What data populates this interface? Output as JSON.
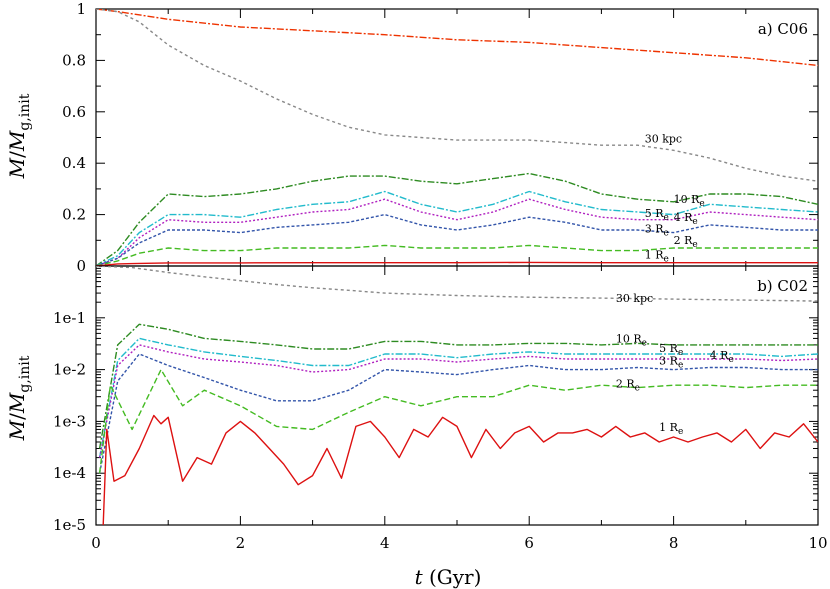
{
  "chart_data": [
    {
      "type": "line",
      "panel_label": "a) C06",
      "x_scale": "linear",
      "y_scale": "linear",
      "xlim": [
        0,
        10
      ],
      "ylim": [
        0,
        1
      ],
      "xticks": [
        0,
        2,
        4,
        6,
        8,
        10
      ],
      "yticks": [
        0,
        0.2,
        0.4,
        0.6,
        0.8,
        1
      ],
      "ytick_labels": [
        "0",
        "0.2",
        "0.4",
        "0.6",
        "0.8",
        "1"
      ],
      "series": [
        {
          "name": "orange",
          "color": "#ee3300",
          "dash": "7,2,2,2",
          "x": [
            0,
            0.3,
            1,
            2,
            3,
            4,
            5,
            6,
            7,
            8,
            9,
            10
          ],
          "y": [
            1,
            0.99,
            0.96,
            0.93,
            0.915,
            0.9,
            0.88,
            0.87,
            0.85,
            0.83,
            0.81,
            0.78
          ]
        },
        {
          "name": "30 kpc",
          "color": "#888888",
          "dash": "3,3",
          "x": [
            0,
            0.3,
            0.6,
            1,
            1.5,
            2,
            2.5,
            3,
            3.5,
            4,
            4.5,
            5,
            5.5,
            6,
            6.5,
            7,
            7.5,
            8,
            8.5,
            9,
            9.5,
            10
          ],
          "y": [
            1,
            0.99,
            0.95,
            0.86,
            0.78,
            0.72,
            0.65,
            0.59,
            0.54,
            0.51,
            0.5,
            0.49,
            0.49,
            0.49,
            0.48,
            0.47,
            0.47,
            0.45,
            0.42,
            0.38,
            0.35,
            0.33
          ]
        },
        {
          "name": "10 Re",
          "color": "#2e8b22",
          "dash": "7,2,2,2",
          "x": [
            0,
            0.3,
            0.6,
            1,
            1.5,
            2,
            2.5,
            3,
            3.5,
            4,
            4.5,
            5,
            5.5,
            6,
            6.5,
            7,
            7.5,
            8,
            8.5,
            9,
            9.5,
            10
          ],
          "y": [
            0,
            0.06,
            0.17,
            0.28,
            0.27,
            0.28,
            0.3,
            0.33,
            0.35,
            0.35,
            0.33,
            0.32,
            0.34,
            0.36,
            0.33,
            0.28,
            0.26,
            0.25,
            0.28,
            0.28,
            0.27,
            0.24
          ]
        },
        {
          "name": "5 Re",
          "color": "#22bbcc",
          "dash": "7,2,2,2",
          "x": [
            0,
            0.3,
            0.6,
            1,
            1.5,
            2,
            2.5,
            3,
            3.5,
            4,
            4.5,
            5,
            5.5,
            6,
            6.5,
            7,
            7.5,
            8,
            8.5,
            9,
            9.5,
            10
          ],
          "y": [
            0,
            0.04,
            0.13,
            0.2,
            0.2,
            0.19,
            0.22,
            0.24,
            0.25,
            0.29,
            0.24,
            0.21,
            0.24,
            0.29,
            0.25,
            0.22,
            0.21,
            0.2,
            0.24,
            0.23,
            0.22,
            0.21
          ]
        },
        {
          "name": "4 Re",
          "color": "#b020c0",
          "dash": "2,2",
          "x": [
            0,
            0.3,
            0.6,
            1,
            1.5,
            2,
            2.5,
            3,
            3.5,
            4,
            4.5,
            5,
            5.5,
            6,
            6.5,
            7,
            7.5,
            8,
            8.5,
            9,
            9.5,
            10
          ],
          "y": [
            0,
            0.03,
            0.11,
            0.18,
            0.17,
            0.17,
            0.19,
            0.21,
            0.22,
            0.26,
            0.21,
            0.18,
            0.21,
            0.26,
            0.22,
            0.19,
            0.18,
            0.18,
            0.21,
            0.2,
            0.19,
            0.18
          ]
        },
        {
          "name": "3 Re",
          "color": "#3355aa",
          "dash": "3,2",
          "x": [
            0,
            0.3,
            0.6,
            1,
            1.5,
            2,
            2.5,
            3,
            3.5,
            4,
            4.5,
            5,
            5.5,
            6,
            6.5,
            7,
            7.5,
            8,
            8.5,
            9,
            9.5,
            10
          ],
          "y": [
            0,
            0.03,
            0.09,
            0.14,
            0.14,
            0.13,
            0.15,
            0.16,
            0.17,
            0.2,
            0.16,
            0.14,
            0.16,
            0.19,
            0.17,
            0.14,
            0.14,
            0.13,
            0.16,
            0.15,
            0.14,
            0.14
          ]
        },
        {
          "name": "2 Re",
          "color": "#44bb22",
          "dash": "6,3",
          "x": [
            0,
            0.3,
            0.6,
            1,
            1.5,
            2,
            2.5,
            3,
            3.5,
            4,
            4.5,
            5,
            5.5,
            6,
            6.5,
            7,
            7.5,
            8,
            8.5,
            9,
            9.5,
            10
          ],
          "y": [
            0,
            0.02,
            0.05,
            0.07,
            0.06,
            0.06,
            0.07,
            0.07,
            0.07,
            0.08,
            0.07,
            0.07,
            0.07,
            0.08,
            0.07,
            0.06,
            0.06,
            0.07,
            0.07,
            0.07,
            0.07,
            0.07
          ]
        },
        {
          "name": "1 Re",
          "color": "#dd1111",
          "dash": "",
          "x": [
            0,
            0.3,
            0.6,
            1,
            2,
            3,
            4,
            5,
            6,
            7,
            8,
            9,
            10
          ],
          "y": [
            0,
            0.008,
            0.01,
            0.012,
            0.012,
            0.013,
            0.013,
            0.013,
            0.014,
            0.013,
            0.013,
            0.013,
            0.013
          ]
        }
      ],
      "labels": [
        {
          "text": "30 kpc",
          "x": 7.6,
          "y": 0.48
        },
        {
          "text": "10 R",
          "sub": "e",
          "x": 8.0,
          "y": 0.245
        },
        {
          "text": "5 R",
          "sub": "e",
          "x": 7.6,
          "y": 0.19
        },
        {
          "text": "4 R",
          "sub": "e",
          "x": 8.0,
          "y": 0.175
        },
        {
          "text": "3 R",
          "sub": "e",
          "x": 7.6,
          "y": 0.13
        },
        {
          "text": "2 R",
          "sub": "e",
          "x": 8.0,
          "y": 0.085
        },
        {
          "text": "1 R",
          "sub": "e",
          "x": 7.6,
          "y": 0.03
        }
      ]
    },
    {
      "type": "line",
      "panel_label": "b) C02",
      "x_scale": "linear",
      "y_scale": "log",
      "xlim": [
        0,
        10
      ],
      "ylim": [
        1e-05,
        1
      ],
      "xticks": [
        0,
        2,
        4,
        6,
        8,
        10
      ],
      "yticks": [
        1e-05,
        0.0001,
        0.001,
        0.01,
        0.1
      ],
      "ytick_labels": [
        "1e-5",
        "1e-4",
        "1e-3",
        "1e-2",
        "1e-1"
      ],
      "series": [
        {
          "name": "30 kpc",
          "color": "#888888",
          "dash": "3,3",
          "x": [
            0,
            0.5,
            1,
            1.5,
            2,
            2.5,
            3,
            3.5,
            4,
            5,
            6,
            7,
            8,
            9,
            10
          ],
          "y": [
            1,
            0.93,
            0.75,
            0.62,
            0.52,
            0.44,
            0.38,
            0.34,
            0.3,
            0.27,
            0.25,
            0.24,
            0.23,
            0.22,
            0.21
          ]
        },
        {
          "name": "10 Re",
          "color": "#2e8b22",
          "dash": "7,2,2,2",
          "x": [
            0.05,
            0.3,
            0.6,
            1,
            1.5,
            2,
            2.5,
            3,
            3.5,
            4,
            4.5,
            5,
            5.5,
            6,
            6.5,
            7,
            7.5,
            8,
            8.5,
            9,
            9.5,
            10
          ],
          "y": [
            0.0003,
            0.03,
            0.075,
            0.06,
            0.04,
            0.035,
            0.03,
            0.025,
            0.025,
            0.035,
            0.035,
            0.03,
            0.03,
            0.032,
            0.032,
            0.03,
            0.032,
            0.03,
            0.03,
            0.03,
            0.03,
            0.03
          ]
        },
        {
          "name": "5 Re",
          "color": "#22bbcc",
          "dash": "7,2,2,2",
          "x": [
            0.05,
            0.3,
            0.6,
            1,
            1.5,
            2,
            2.5,
            3,
            3.5,
            4,
            4.5,
            5,
            5.5,
            6,
            6.5,
            7,
            7.5,
            8,
            8.5,
            9,
            9.5,
            10
          ],
          "y": [
            0.0002,
            0.015,
            0.04,
            0.03,
            0.022,
            0.018,
            0.015,
            0.012,
            0.012,
            0.02,
            0.02,
            0.017,
            0.02,
            0.022,
            0.02,
            0.02,
            0.02,
            0.02,
            0.02,
            0.02,
            0.018,
            0.02
          ]
        },
        {
          "name": "4 Re",
          "color": "#b020c0",
          "dash": "2,2",
          "x": [
            0.05,
            0.3,
            0.6,
            1,
            1.5,
            2,
            2.5,
            3,
            3.5,
            4,
            4.5,
            5,
            5.5,
            6,
            6.5,
            7,
            7.5,
            8,
            8.5,
            9,
            9.5,
            10
          ],
          "y": [
            0.0002,
            0.012,
            0.03,
            0.022,
            0.016,
            0.014,
            0.012,
            0.009,
            0.01,
            0.016,
            0.016,
            0.014,
            0.016,
            0.018,
            0.016,
            0.016,
            0.016,
            0.016,
            0.016,
            0.016,
            0.015,
            0.016
          ]
        },
        {
          "name": "3 Re",
          "color": "#3355aa",
          "dash": "3,2",
          "x": [
            0.05,
            0.3,
            0.6,
            1,
            1.5,
            2,
            2.5,
            3,
            3.5,
            4,
            4.5,
            5,
            5.5,
            6,
            6.5,
            7,
            7.5,
            8,
            8.5,
            9,
            9.5,
            10
          ],
          "y": [
            0.0001,
            0.006,
            0.02,
            0.012,
            0.007,
            0.004,
            0.0025,
            0.0025,
            0.004,
            0.01,
            0.009,
            0.008,
            0.01,
            0.012,
            0.01,
            0.01,
            0.011,
            0.01,
            0.011,
            0.011,
            0.01,
            0.01
          ]
        },
        {
          "name": "2 Re",
          "color": "#44bb22",
          "dash": "6,3",
          "x": [
            0.05,
            0.2,
            0.5,
            0.9,
            1.2,
            1.5,
            2,
            2.5,
            3,
            3.5,
            4,
            4.5,
            5,
            5.5,
            6,
            6.5,
            7,
            7.5,
            8,
            8.5,
            9,
            9.5,
            10
          ],
          "y": [
            0.0001,
            0.005,
            0.0007,
            0.01,
            0.002,
            0.004,
            0.002,
            0.0008,
            0.0007,
            0.0015,
            0.003,
            0.002,
            0.003,
            0.003,
            0.005,
            0.004,
            0.005,
            0.0045,
            0.005,
            0.005,
            0.0045,
            0.005,
            0.005
          ]
        },
        {
          "name": "1 Re",
          "color": "#dd1111",
          "dash": "",
          "x": [
            0.1,
            0.15,
            0.25,
            0.4,
            0.6,
            0.8,
            0.9,
            1.0,
            1.2,
            1.4,
            1.6,
            1.8,
            2.0,
            2.2,
            2.4,
            2.6,
            2.8,
            3.0,
            3.2,
            3.4,
            3.6,
            3.8,
            4.0,
            4.2,
            4.4,
            4.6,
            4.8,
            5.0,
            5.2,
            5.4,
            5.6,
            5.8,
            6.0,
            6.2,
            6.4,
            6.6,
            6.8,
            7.0,
            7.2,
            7.4,
            7.6,
            7.8,
            8.0,
            8.2,
            8.4,
            8.6,
            8.8,
            9.0,
            9.2,
            9.4,
            9.6,
            9.8,
            10.0
          ],
          "y": [
            1e-05,
            0.0007,
            7e-05,
            9e-05,
            0.0003,
            0.0013,
            0.0009,
            0.0012,
            7e-05,
            0.0002,
            0.00015,
            0.0006,
            0.001,
            0.0006,
            0.0003,
            0.00015,
            6e-05,
            9e-05,
            0.0003,
            8e-05,
            0.0008,
            0.001,
            0.0005,
            0.0002,
            0.0007,
            0.0005,
            0.0012,
            0.0008,
            0.0002,
            0.0007,
            0.0003,
            0.0006,
            0.0008,
            0.0004,
            0.0006,
            0.0006,
            0.0007,
            0.0005,
            0.0008,
            0.0005,
            0.0006,
            0.0004,
            0.0005,
            0.0004,
            0.0005,
            0.0006,
            0.0004,
            0.0007,
            0.0003,
            0.0006,
            0.0005,
            0.0009,
            0.0004
          ]
        }
      ],
      "labels": [
        {
          "text": "30 kpc",
          "x": 7.2,
          "y": 0.2
        },
        {
          "text": "10 R",
          "sub": "e",
          "x": 7.2,
          "y": 0.033
        },
        {
          "text": "5 R",
          "sub": "e",
          "x": 7.8,
          "y": 0.022
        },
        {
          "text": "3 R",
          "sub": "e",
          "x": 7.8,
          "y": 0.0125
        },
        {
          "text": "4 R",
          "sub": "e",
          "x": 8.5,
          "y": 0.016
        },
        {
          "text": "2 R",
          "sub": "e",
          "x": 7.2,
          "y": 0.0045
        },
        {
          "text": "1 R",
          "sub": "e",
          "x": 7.8,
          "y": 0.00065
        }
      ]
    }
  ],
  "axes": {
    "xlabel_italic": "t",
    "xlabel_unit": " (Gyr)",
    "ylabel_main": "M",
    "ylabel_slash": "/",
    "ylabel_denom": "M",
    "ylabel_sub": "g,init"
  }
}
